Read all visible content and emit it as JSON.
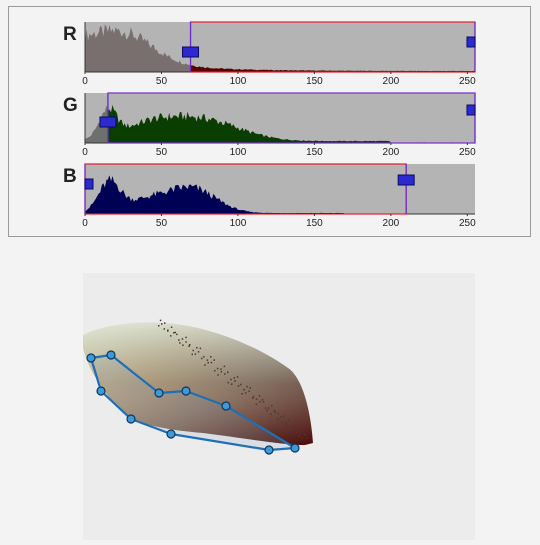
{
  "histogram_panel": {
    "x_ticks": [
      "0",
      "50",
      "100",
      "150",
      "200",
      "250"
    ],
    "x_max": 255,
    "channels": [
      {
        "label": "R",
        "low": 69,
        "high": 255,
        "outline_color": "#e0202a",
        "dark_color": "#5a0000",
        "light_color": "#7a6f6f"
      },
      {
        "label": "G",
        "low": 15,
        "high": 255,
        "outline_color": "#7b2bd1",
        "dark_color": "#0a3d00",
        "light_color": "#6e706e"
      },
      {
        "label": "B",
        "low": 0,
        "high": 210,
        "outline_color": "#e0202a",
        "dark_color": "#000055",
        "light_color": "#6f6f7a"
      }
    ],
    "handle_color": "#2a2ad0"
  },
  "scatter_panel": {
    "polygon_color": "#1f6fb5",
    "vertex_count": 11
  }
}
